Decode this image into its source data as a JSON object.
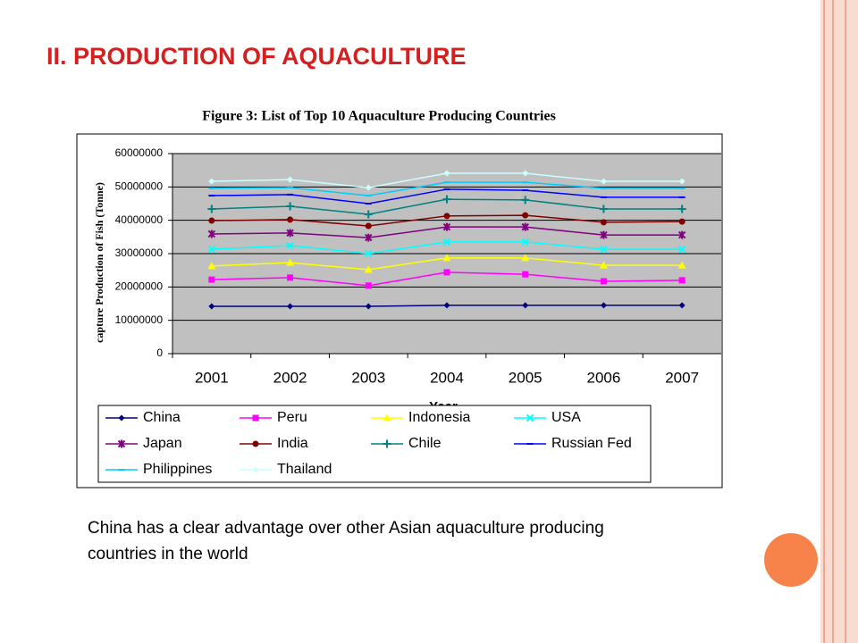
{
  "header": {
    "title": "II. PRODUCTION OF AQUACULTURE"
  },
  "body": {
    "text": "China has a clear advantage over other Asian aquaculture producing countries in the world"
  },
  "chart_data": {
    "type": "line",
    "title": "Figure 3: List of Top 10 Aquaculture Producing Countries",
    "x_label": "Year",
    "y_label": "capture Production of Fish (Tonne)",
    "categories": [
      "2001",
      "2002",
      "2003",
      "2004",
      "2005",
      "2006",
      "2007"
    ],
    "ylim": [
      0,
      60000000
    ],
    "yticks": [
      0,
      10000000,
      20000000,
      30000000,
      40000000,
      50000000,
      60000000
    ],
    "grid": true,
    "legend": "bottom",
    "series": [
      {
        "name": "China",
        "color": "#000080",
        "marker": "diamond",
        "values": [
          14200000,
          14200000,
          14200000,
          14500000,
          14500000,
          14500000,
          14500000
        ]
      },
      {
        "name": "Peru",
        "color": "#ff00ff",
        "marker": "square",
        "values": [
          22200000,
          22800000,
          20400000,
          24400000,
          23800000,
          21700000,
          22000000
        ]
      },
      {
        "name": "Indonesia",
        "color": "#ffff00",
        "marker": "triangle",
        "values": [
          26300000,
          27300000,
          25200000,
          28700000,
          28700000,
          26500000,
          26500000
        ]
      },
      {
        "name": "USA",
        "color": "#00ffff",
        "marker": "x",
        "values": [
          31300000,
          32400000,
          30000000,
          33500000,
          33500000,
          31300000,
          31300000
        ]
      },
      {
        "name": "Japan",
        "color": "#800080",
        "marker": "star",
        "values": [
          35900000,
          36200000,
          34800000,
          38000000,
          38000000,
          35600000,
          35600000
        ]
      },
      {
        "name": "India",
        "color": "#800000",
        "marker": "circle",
        "values": [
          39900000,
          40200000,
          38300000,
          41300000,
          41500000,
          39400000,
          39600000
        ]
      },
      {
        "name": "Chile",
        "color": "#008080",
        "marker": "plus",
        "values": [
          43400000,
          44200000,
          41800000,
          46300000,
          46100000,
          43400000,
          43400000
        ]
      },
      {
        "name": "Russian Fed",
        "color": "#0000ff",
        "marker": "dash",
        "values": [
          47400000,
          47700000,
          45000000,
          49300000,
          49000000,
          46900000,
          46900000
        ]
      },
      {
        "name": "Philippines",
        "color": "#00ccff",
        "marker": "dash",
        "values": [
          49600000,
          49800000,
          47400000,
          51400000,
          51400000,
          49600000,
          49600000
        ]
      },
      {
        "name": "Thailand",
        "color": "#ccffff",
        "marker": "diamond",
        "values": [
          51700000,
          52200000,
          49800000,
          54100000,
          54100000,
          51700000,
          51700000
        ]
      }
    ]
  }
}
